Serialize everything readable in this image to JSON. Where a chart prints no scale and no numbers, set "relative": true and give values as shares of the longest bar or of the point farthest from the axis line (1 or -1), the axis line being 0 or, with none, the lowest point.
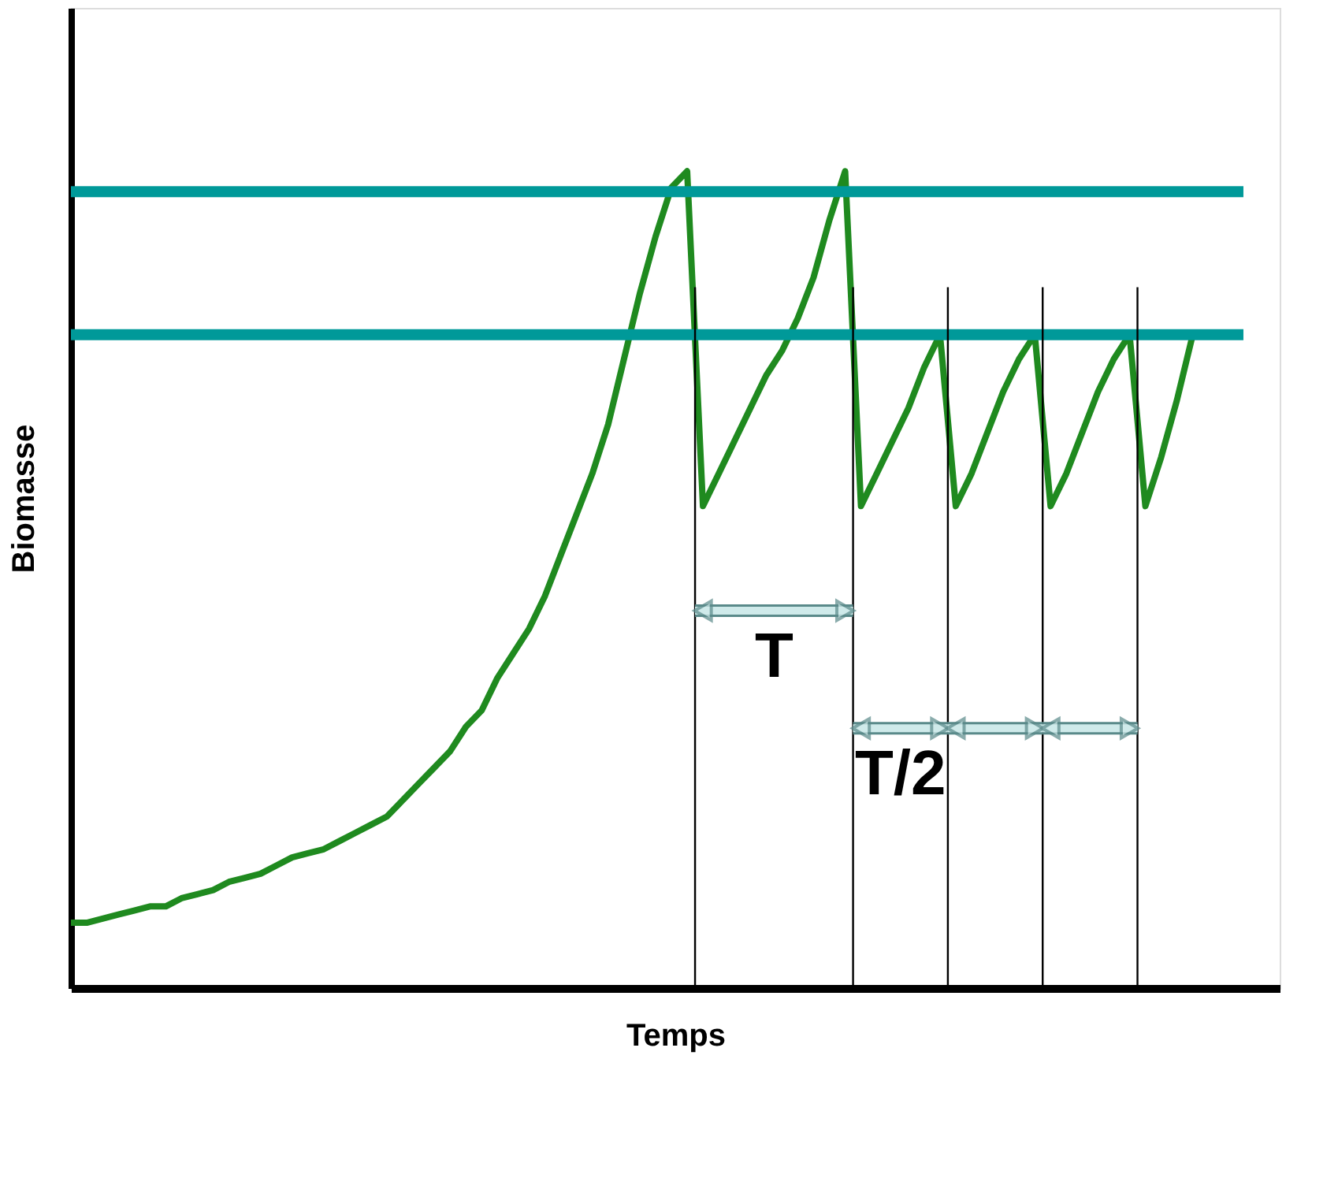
{
  "chart_data": {
    "type": "line",
    "relative": true,
    "xlabel": "Temps",
    "ylabel": "Biomasse",
    "tick_labels": false,
    "grid": false,
    "marker": "none",
    "line_style": "solid",
    "categories": [
      null,
      null,
      null,
      null,
      null,
      null,
      null,
      null,
      null,
      null,
      null,
      null,
      null,
      null,
      null,
      null,
      null,
      null,
      null,
      null,
      null,
      null,
      null,
      null,
      null,
      null,
      null,
      null,
      null,
      null,
      null,
      null,
      null,
      null,
      null,
      null,
      null,
      null,
      null,
      null,
      null,
      null,
      null,
      null,
      null,
      null,
      null,
      null,
      null,
      null,
      null,
      null,
      null,
      null,
      null,
      null,
      null,
      null,
      null,
      null,
      null,
      null,
      null,
      null,
      null,
      null,
      null,
      null,
      null,
      null,
      null,
      null
    ],
    "series": [
      {
        "color": "#1f8a1f",
        "values": [
          0.08,
          0.08,
          0.085,
          0.09,
          0.095,
          0.1,
          0.1,
          0.11,
          0.115,
          0.12,
          0.13,
          0.135,
          0.14,
          0.15,
          0.16,
          0.165,
          0.17,
          0.18,
          0.19,
          0.2,
          0.21,
          0.23,
          0.25,
          0.27,
          0.29,
          0.32,
          0.34,
          0.38,
          0.41,
          0.44,
          0.48,
          0.53,
          0.58,
          0.63,
          0.69,
          0.77,
          0.85,
          0.92,
          0.98,
          1.0,
          0.59,
          0.63,
          0.67,
          0.71,
          0.75,
          0.78,
          0.82,
          0.87,
          0.94,
          1.0,
          0.59,
          0.63,
          0.67,
          0.71,
          0.76,
          0.8,
          0.59,
          0.63,
          0.68,
          0.73,
          0.77,
          0.8,
          0.59,
          0.63,
          0.68,
          0.73,
          0.77,
          0.8,
          0.59,
          0.65,
          0.72,
          0.8
        ]
      }
    ],
    "ref_lines": [
      {
        "axis": "y",
        "value": 0.975,
        "color": "#009999"
      },
      {
        "axis": "y",
        "value": 0.8,
        "color": "#009999"
      }
    ],
    "annotations": [
      "T",
      "T/2"
    ]
  }
}
